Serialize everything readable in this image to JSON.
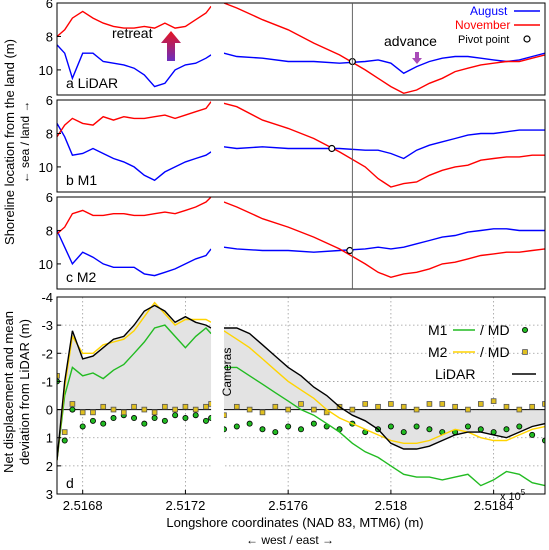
{
  "figure": {
    "ylabel_top": "Shoreline location from the land (m)",
    "ylabel_top_dir": "← sea / land →",
    "ylabel_bottom_1": "Net displacement and mean",
    "ylabel_bottom_2": "deviation from LiDAR (m)",
    "xlabel": "Longshore coordinates (NAD 83, MTM6) (m)",
    "xlabel_dir": "← west / east →",
    "x_multiplier": "x 10",
    "x_multiplier_exp": "5",
    "colors": {
      "august": "#0000ff",
      "november": "#ff0000",
      "m1": "#22bb22",
      "m2": "#ffd400",
      "lidar": "#000000",
      "fill": "#e3e3e3"
    },
    "legend": {
      "august": "August",
      "november": "November",
      "pivot": "Pivot point"
    },
    "annotations": {
      "retreat": "retreat",
      "advance": "advance",
      "cameras": "Cameras"
    },
    "legend_d": {
      "m1": "M1",
      "m2": "M2",
      "md": "/ MD",
      "lidar": "LiDAR"
    }
  },
  "chart_data": [
    {
      "type": "line",
      "panel_label": "a  LiDAR",
      "xlim": [
        251670,
        251860
      ],
      "ylim": [
        6,
        11.5
      ],
      "y_reversed": true,
      "yticks": [
        6,
        8,
        10
      ],
      "gap": [
        251730,
        251735
      ],
      "pivot": [
        251785,
        9.5
      ],
      "series": [
        {
          "name": "August",
          "x": [
            251670,
            251673,
            251676,
            251680,
            251684,
            251688,
            251692,
            251696,
            251700,
            251704,
            251708,
            251712,
            251716,
            251720,
            251724,
            251728,
            251730,
            251735,
            251740,
            251750,
            251760,
            251770,
            251780,
            251790,
            251795,
            251800,
            251805,
            251810,
            251815,
            251820,
            251825,
            251830,
            251835,
            251840,
            251845,
            251850,
            251855,
            251860
          ],
          "y": [
            8.5,
            9.0,
            10.5,
            9.0,
            9.0,
            9.5,
            9.6,
            9.7,
            9.9,
            10.3,
            11.0,
            10.8,
            10.0,
            9.7,
            9.6,
            9.3,
            9.1,
            9.0,
            9.2,
            9.3,
            9.5,
            9.5,
            9.6,
            9.5,
            9.4,
            9.6,
            10.2,
            9.8,
            9.5,
            9.3,
            9.2,
            9.2,
            9.3,
            9.4,
            9.5,
            9.4,
            9.2,
            9.0
          ]
        },
        {
          "name": "November",
          "x": [
            251670,
            251673,
            251676,
            251680,
            251684,
            251688,
            251692,
            251696,
            251700,
            251704,
            251708,
            251712,
            251716,
            251720,
            251724,
            251728,
            251730,
            251735,
            251740,
            251750,
            251760,
            251770,
            251780,
            251790,
            251795,
            251800,
            251805,
            251810,
            251815,
            251820,
            251825,
            251830,
            251835,
            251840,
            251845,
            251850,
            251855,
            251860
          ],
          "y": [
            8.0,
            7.6,
            6.9,
            6.5,
            6.9,
            7.2,
            7.4,
            7.5,
            7.5,
            7.4,
            7.5,
            7.2,
            7.5,
            7.4,
            7.0,
            6.6,
            6.2,
            6.0,
            6.3,
            7.0,
            7.6,
            8.4,
            9.1,
            10.0,
            10.5,
            11.0,
            11.4,
            11.2,
            10.8,
            10.5,
            10.1,
            9.9,
            9.7,
            9.6,
            9.5,
            9.5,
            9.3,
            9.1
          ]
        }
      ]
    },
    {
      "type": "line",
      "panel_label": "b  M1",
      "xlim": [
        251670,
        251860
      ],
      "ylim": [
        6,
        11.5
      ],
      "y_reversed": true,
      "yticks": [
        6,
        8,
        10
      ],
      "gap": [
        251730,
        251735
      ],
      "pivot": [
        251777,
        8.9
      ],
      "series": [
        {
          "name": "August",
          "x": [
            251670,
            251673,
            251676,
            251680,
            251684,
            251688,
            251692,
            251696,
            251700,
            251704,
            251708,
            251712,
            251716,
            251720,
            251724,
            251728,
            251730,
            251735,
            251740,
            251750,
            251760,
            251770,
            251780,
            251790,
            251795,
            251800,
            251805,
            251810,
            251815,
            251820,
            251825,
            251830,
            251835,
            251840,
            251845,
            251850,
            251855,
            251860
          ],
          "y": [
            7.4,
            8.2,
            9.3,
            9.2,
            8.9,
            9.2,
            9.5,
            9.7,
            10.0,
            10.5,
            10.8,
            10.3,
            10.0,
            9.7,
            9.5,
            9.3,
            9.1,
            8.8,
            8.9,
            8.8,
            8.9,
            8.9,
            8.9,
            9.0,
            9.0,
            9.2,
            9.5,
            9.0,
            8.7,
            8.5,
            8.3,
            8.1,
            8.0,
            8.0,
            7.9,
            7.8,
            7.8,
            7.8
          ]
        },
        {
          "name": "November",
          "x": [
            251670,
            251673,
            251676,
            251680,
            251684,
            251688,
            251692,
            251696,
            251700,
            251704,
            251708,
            251712,
            251716,
            251720,
            251724,
            251728,
            251730,
            251735,
            251740,
            251750,
            251760,
            251770,
            251780,
            251790,
            251795,
            251800,
            251805,
            251810,
            251815,
            251820,
            251825,
            251830,
            251835,
            251840,
            251845,
            251850,
            251855,
            251860
          ],
          "y": [
            8.2,
            7.5,
            7.1,
            7.4,
            7.5,
            7.0,
            7.2,
            7.0,
            7.1,
            7.1,
            7.0,
            6.9,
            7.1,
            6.9,
            6.7,
            6.5,
            6.1,
            6.2,
            6.4,
            7.2,
            7.7,
            8.3,
            9.1,
            10.0,
            10.7,
            11.2,
            11.0,
            10.9,
            10.5,
            10.2,
            10.0,
            9.9,
            9.6,
            9.5,
            9.4,
            9.4,
            9.3,
            9.3
          ]
        }
      ]
    },
    {
      "type": "line",
      "panel_label": "c  M2",
      "xlim": [
        251670,
        251860
      ],
      "ylim": [
        6,
        11.5
      ],
      "y_reversed": true,
      "yticks": [
        6,
        8,
        10
      ],
      "gap": [
        251730,
        251735
      ],
      "pivot": [
        251784,
        9.2
      ],
      "series": [
        {
          "name": "August",
          "x": [
            251670,
            251673,
            251676,
            251680,
            251684,
            251688,
            251692,
            251696,
            251700,
            251704,
            251708,
            251712,
            251716,
            251720,
            251724,
            251728,
            251730,
            251735,
            251740,
            251750,
            251760,
            251770,
            251780,
            251790,
            251795,
            251800,
            251805,
            251810,
            251815,
            251820,
            251825,
            251830,
            251835,
            251840,
            251845,
            251850,
            251855,
            251860
          ],
          "y": [
            8.0,
            9.0,
            10.0,
            9.3,
            9.6,
            10.0,
            10.2,
            10.2,
            10.2,
            10.6,
            10.7,
            10.5,
            10.3,
            10.0,
            9.7,
            9.5,
            9.1,
            9.0,
            9.1,
            9.2,
            9.2,
            9.3,
            9.2,
            9.1,
            9.0,
            9.1,
            9.0,
            8.8,
            8.6,
            8.4,
            8.3,
            8.1,
            8.0,
            7.9,
            7.9,
            8.0,
            8.0,
            8.0
          ]
        },
        {
          "name": "November",
          "x": [
            251670,
            251673,
            251676,
            251680,
            251684,
            251688,
            251692,
            251696,
            251700,
            251704,
            251708,
            251712,
            251716,
            251720,
            251724,
            251728,
            251730,
            251735,
            251740,
            251750,
            251760,
            251770,
            251780,
            251790,
            251795,
            251800,
            251805,
            251810,
            251815,
            251820,
            251825,
            251830,
            251835,
            251840,
            251845,
            251850,
            251855,
            251860
          ],
          "y": [
            8.2,
            7.8,
            7.0,
            6.8,
            7.1,
            7.1,
            7.0,
            7.0,
            7.1,
            7.1,
            7.0,
            6.9,
            7.0,
            6.8,
            6.6,
            6.3,
            6.0,
            6.3,
            6.6,
            7.3,
            7.8,
            8.4,
            9.1,
            10.0,
            10.5,
            10.8,
            10.6,
            10.5,
            10.3,
            10.0,
            9.9,
            9.7,
            9.5,
            9.4,
            9.3,
            9.3,
            9.2,
            9.1
          ]
        }
      ]
    },
    {
      "type": "line",
      "panel_label": "d",
      "xlim": [
        251670,
        251860
      ],
      "ylim": [
        -4,
        3
      ],
      "y_reversed": true,
      "yticks": [
        -4,
        -3,
        -2,
        -1,
        0,
        1,
        2,
        3
      ],
      "xticks": [
        251680,
        251720,
        251760,
        251800,
        251840
      ],
      "xtick_labels": [
        "2.5168",
        "2.5172",
        "2.5176",
        "2.518",
        "2.5184"
      ],
      "gap": [
        251730,
        251735
      ],
      "x": [
        251670,
        251673,
        251676,
        251680,
        251684,
        251688,
        251692,
        251696,
        251700,
        251704,
        251708,
        251712,
        251716,
        251720,
        251724,
        251728,
        251730,
        251735,
        251740,
        251745,
        251750,
        251755,
        251760,
        251765,
        251770,
        251775,
        251780,
        251785,
        251790,
        251795,
        251800,
        251805,
        251810,
        251815,
        251820,
        251825,
        251830,
        251835,
        251840,
        251845,
        251850,
        251855,
        251860
      ],
      "series": [
        {
          "name": "LiDAR",
          "y": [
            1.8,
            -1.0,
            -2.8,
            -1.8,
            -1.9,
            -2.2,
            -2.5,
            -2.6,
            -3.0,
            -3.5,
            -3.7,
            -3.5,
            -3.1,
            -3.3,
            -3.1,
            -3.0,
            -2.9,
            -2.9,
            -2.9,
            -2.7,
            -2.3,
            -1.9,
            -1.5,
            -1.2,
            -0.8,
            -0.5,
            -0.1,
            0.2,
            0.4,
            0.7,
            1.2,
            1.4,
            1.4,
            1.3,
            1.1,
            0.9,
            0.8,
            0.8,
            0.9,
            1.0,
            0.8,
            0.6,
            0.5
          ]
        },
        {
          "name": "M1",
          "y": [
            1.8,
            -0.5,
            -1.5,
            -1.2,
            -1.3,
            -1.1,
            -1.4,
            -1.6,
            -2.0,
            -2.4,
            -2.9,
            -3.0,
            -2.6,
            -2.2,
            -2.6,
            -2.9,
            -2.7,
            -1.5,
            -1.5,
            -1.2,
            -0.9,
            -0.6,
            -0.3,
            0.0,
            0.2,
            0.5,
            0.8,
            1.2,
            1.5,
            1.7,
            2.0,
            2.3,
            2.4,
            2.4,
            2.5,
            2.4,
            2.3,
            2.7,
            2.5,
            2.2,
            2.3,
            2.6,
            2.7
          ]
        },
        {
          "name": "M2",
          "y": [
            1.8,
            -0.8,
            -2.6,
            -2.0,
            -2.0,
            -2.3,
            -2.4,
            -2.5,
            -2.8,
            -3.3,
            -3.8,
            -3.4,
            -3.0,
            -3.2,
            -3.2,
            -3.2,
            -3.1,
            -2.8,
            -2.5,
            -2.2,
            -1.8,
            -1.4,
            -1.0,
            -0.7,
            -0.4,
            0.0,
            0.3,
            0.5,
            0.7,
            0.9,
            1.1,
            1.2,
            1.2,
            1.1,
            0.9,
            0.7,
            0.8,
            1.0,
            1.1,
            1.1,
            0.9,
            0.7,
            0.6
          ]
        }
      ],
      "md_m1": [
        -1.0,
        1.1,
        0.0,
        0.6,
        0.4,
        0.5,
        0.3,
        0.2,
        0.3,
        0.5,
        0.3,
        0.4,
        0.2,
        0.3,
        0.2,
        0.4,
        0.3,
        0.7,
        0.6,
        0.5,
        0.7,
        0.8,
        0.6,
        0.7,
        0.5,
        0.6,
        0.7,
        0.5,
        0.8,
        0.7,
        0.6,
        0.8,
        0.6,
        0.7,
        0.8,
        0.8,
        0.6,
        0.7,
        0.8,
        0.7,
        0.6,
        0.9,
        1.1
      ],
      "md_m2": [
        -1.2,
        0.8,
        -0.2,
        0.1,
        0.1,
        -0.1,
        0.0,
        0.1,
        -0.1,
        0.0,
        0.1,
        -0.1,
        0.0,
        -0.1,
        0.0,
        -0.1,
        -0.2,
        0.2,
        -0.1,
        0.0,
        0.1,
        -0.1,
        0.0,
        -0.2,
        0.0,
        0.1,
        -0.1,
        0.0,
        -0.2,
        -0.1,
        -0.2,
        -0.1,
        0.0,
        -0.2,
        -0.2,
        -0.1,
        0.0,
        -0.2,
        -0.3,
        -0.1,
        0.0,
        -0.1,
        -0.2
      ]
    }
  ]
}
